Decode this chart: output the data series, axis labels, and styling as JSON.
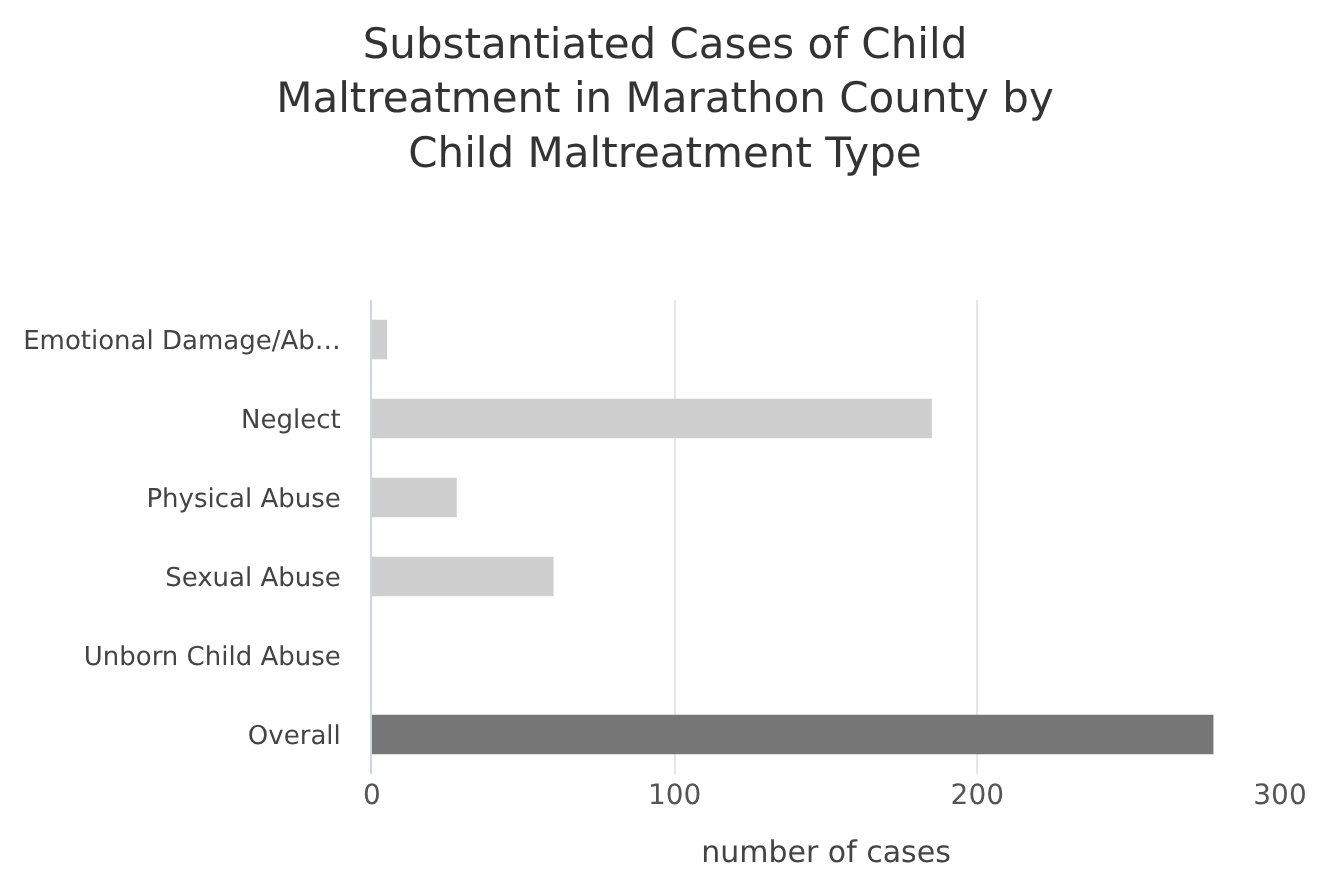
{
  "chart_data": {
    "type": "bar",
    "orientation": "horizontal",
    "title": "Substantiated Cases of Child Maltreatment in Marathon County by Child Maltreatment Type",
    "categories": [
      "Emotional Damage/Ab…",
      "Neglect",
      "Physical Abuse",
      "Sexual Abuse",
      "Unborn Child Abuse",
      "Overall"
    ],
    "values": [
      5,
      185,
      28,
      60,
      0,
      278
    ],
    "colors": [
      "#cfcfcf",
      "#cfcfcf",
      "#cfcfcf",
      "#cfcfcf",
      "#cfcfcf",
      "#777777"
    ],
    "xlabel": "number of cases",
    "xlim": [
      0,
      300
    ],
    "xticks": [
      0,
      100,
      200,
      300
    ],
    "grid": "x"
  }
}
